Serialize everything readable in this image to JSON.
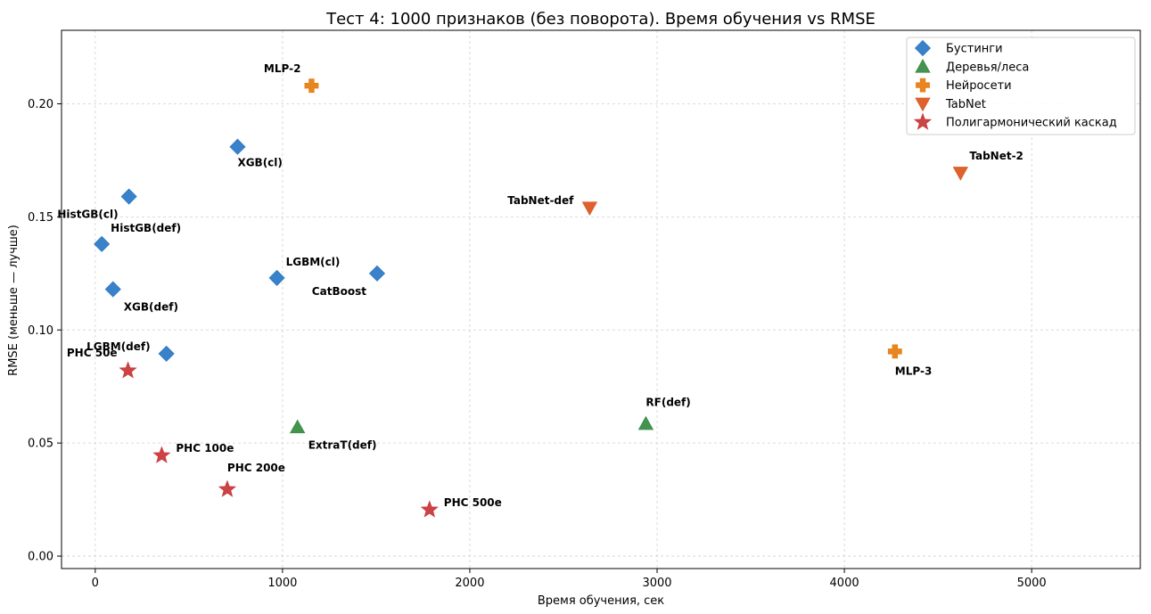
{
  "chart_data": {
    "type": "scatter",
    "title": "Тест 4: 1000 признаков (без поворота). Время обучения vs RMSE",
    "xlabel": "Время обучения, сек",
    "ylabel": "RMSE (меньше — лучше)",
    "xlim": [
      -180,
      5580
    ],
    "ylim": [
      -0.0055,
      0.2325
    ],
    "x_ticks": [
      0,
      1000,
      2000,
      3000,
      4000,
      5000
    ],
    "x_tick_labels": [
      "0",
      "1000",
      "2000",
      "3000",
      "4000",
      "5000"
    ],
    "y_ticks": [
      0.0,
      0.05,
      0.1,
      0.15,
      0.2
    ],
    "y_tick_labels": [
      "0.00",
      "0.05",
      "0.10",
      "0.15",
      "0.20"
    ],
    "grid": true,
    "legend_position": "top-right",
    "series": [
      {
        "name": "Бустинги",
        "marker": "diamond",
        "color": "#2e7ac6",
        "points": [
          {
            "label": "XGB(cl)",
            "x": 760,
            "y": 0.181,
            "label_dx": 0,
            "label_dy": 22,
            "anchor": "start"
          },
          {
            "label": "HistGB(cl)",
            "x": 180,
            "y": 0.159,
            "label_dx": -12,
            "label_dy": 24,
            "anchor": "end"
          },
          {
            "label": "HistGB(def)",
            "x": 35,
            "y": 0.138,
            "label_dx": 10,
            "label_dy": -14,
            "anchor": "start"
          },
          {
            "label": "XGB(def)",
            "x": 95,
            "y": 0.118,
            "label_dx": 12,
            "label_dy": 24,
            "anchor": "start"
          },
          {
            "label": "LGBM(cl)",
            "x": 970,
            "y": 0.123,
            "label_dx": 10,
            "label_dy": -14,
            "anchor": "start"
          },
          {
            "label": "CatBoost",
            "x": 1505,
            "y": 0.125,
            "label_dx": -12,
            "label_dy": 24,
            "anchor": "end"
          },
          {
            "label": "LGBM(def)",
            "x": 380,
            "y": 0.0895,
            "label_dx": -18,
            "label_dy": -4,
            "anchor": "end"
          }
        ]
      },
      {
        "name": "Деревья/леса",
        "marker": "triangle-up",
        "color": "#3a8d46",
        "points": [
          {
            "label": "ExtraT(def)",
            "x": 1080,
            "y": 0.057,
            "label_dx": 12,
            "label_dy": 24,
            "anchor": "start"
          },
          {
            "label": "RF(def)",
            "x": 2940,
            "y": 0.0585,
            "label_dx": 0,
            "label_dy": -20,
            "anchor": "start"
          }
        ]
      },
      {
        "name": "Нейросети",
        "marker": "plus",
        "color": "#e67e14",
        "points": [
          {
            "label": "MLP-2",
            "x": 1155,
            "y": 0.208,
            "label_dx": -12,
            "label_dy": -15,
            "anchor": "end"
          },
          {
            "label": "MLP-3",
            "x": 4270,
            "y": 0.0905,
            "label_dx": 0,
            "label_dy": 26,
            "anchor": "start"
          }
        ]
      },
      {
        "name": "TabNet",
        "marker": "triangle-down",
        "color": "#dc5a22",
        "points": [
          {
            "label": "TabNet-def",
            "x": 2640,
            "y": 0.154,
            "label_dx": -18,
            "label_dy": -4,
            "anchor": "end"
          },
          {
            "label": "TabNet-2",
            "x": 4620,
            "y": 0.1695,
            "label_dx": 10,
            "label_dy": -15,
            "anchor": "start"
          }
        ]
      },
      {
        "name": "Полигармонический каскад",
        "marker": "star",
        "color": "#c9393b",
        "points": [
          {
            "label": "PHC 50e",
            "x": 175,
            "y": 0.082,
            "label_dx": -12,
            "label_dy": -16,
            "anchor": "end"
          },
          {
            "label": "PHC 100e",
            "x": 355,
            "y": 0.0445,
            "label_dx": 16,
            "label_dy": -4,
            "anchor": "start"
          },
          {
            "label": "PHC 200e",
            "x": 705,
            "y": 0.0295,
            "label_dx": 0,
            "label_dy": -20,
            "anchor": "start"
          },
          {
            "label": "PHC 500e",
            "x": 1785,
            "y": 0.0205,
            "label_dx": 16,
            "label_dy": -4,
            "anchor": "start"
          }
        ]
      }
    ]
  }
}
